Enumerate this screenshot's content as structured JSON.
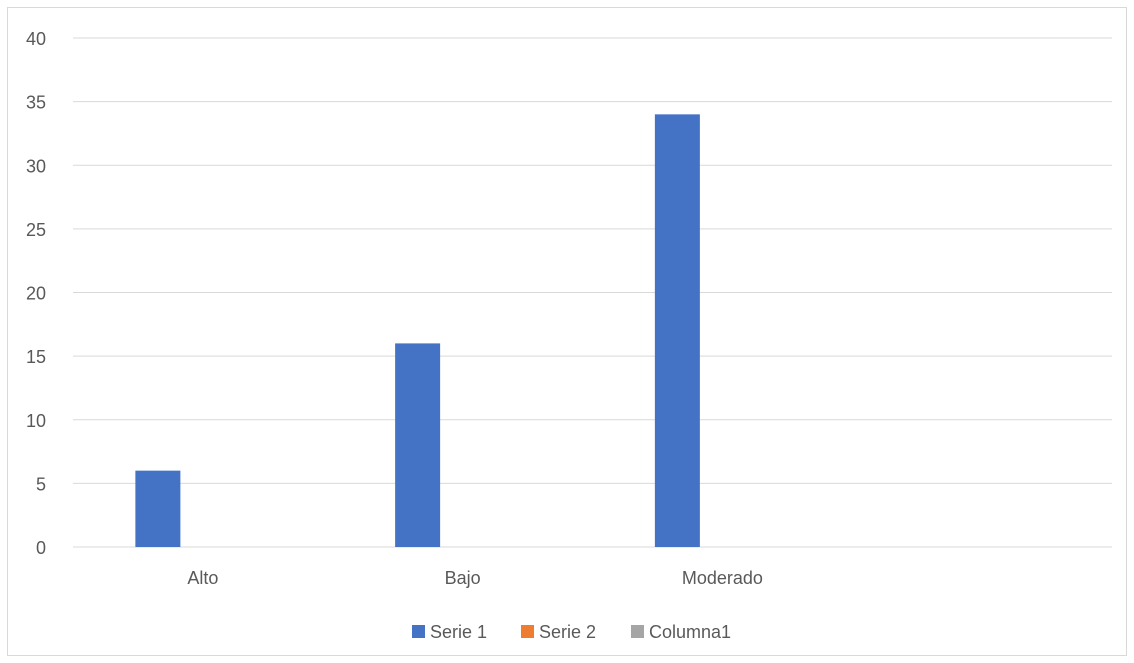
{
  "chart_data": {
    "type": "bar",
    "categories": [
      "Alto",
      "Bajo",
      "Moderado",
      ""
    ],
    "series": [
      {
        "name": "Serie 1",
        "values": [
          6,
          16,
          34,
          null
        ],
        "color": "#4472C4"
      },
      {
        "name": "Serie 2",
        "values": [
          null,
          null,
          null,
          null
        ],
        "color": "#ED7D31"
      },
      {
        "name": "Columna1",
        "values": [
          null,
          null,
          null,
          null
        ],
        "color": "#A5A5A5"
      }
    ],
    "title": "",
    "xlabel": "",
    "ylabel": "",
    "ylim": [
      0,
      40
    ],
    "yticks": [
      0,
      5,
      10,
      15,
      20,
      25,
      30,
      35,
      40
    ],
    "grid": true,
    "legend_position": "bottom"
  }
}
